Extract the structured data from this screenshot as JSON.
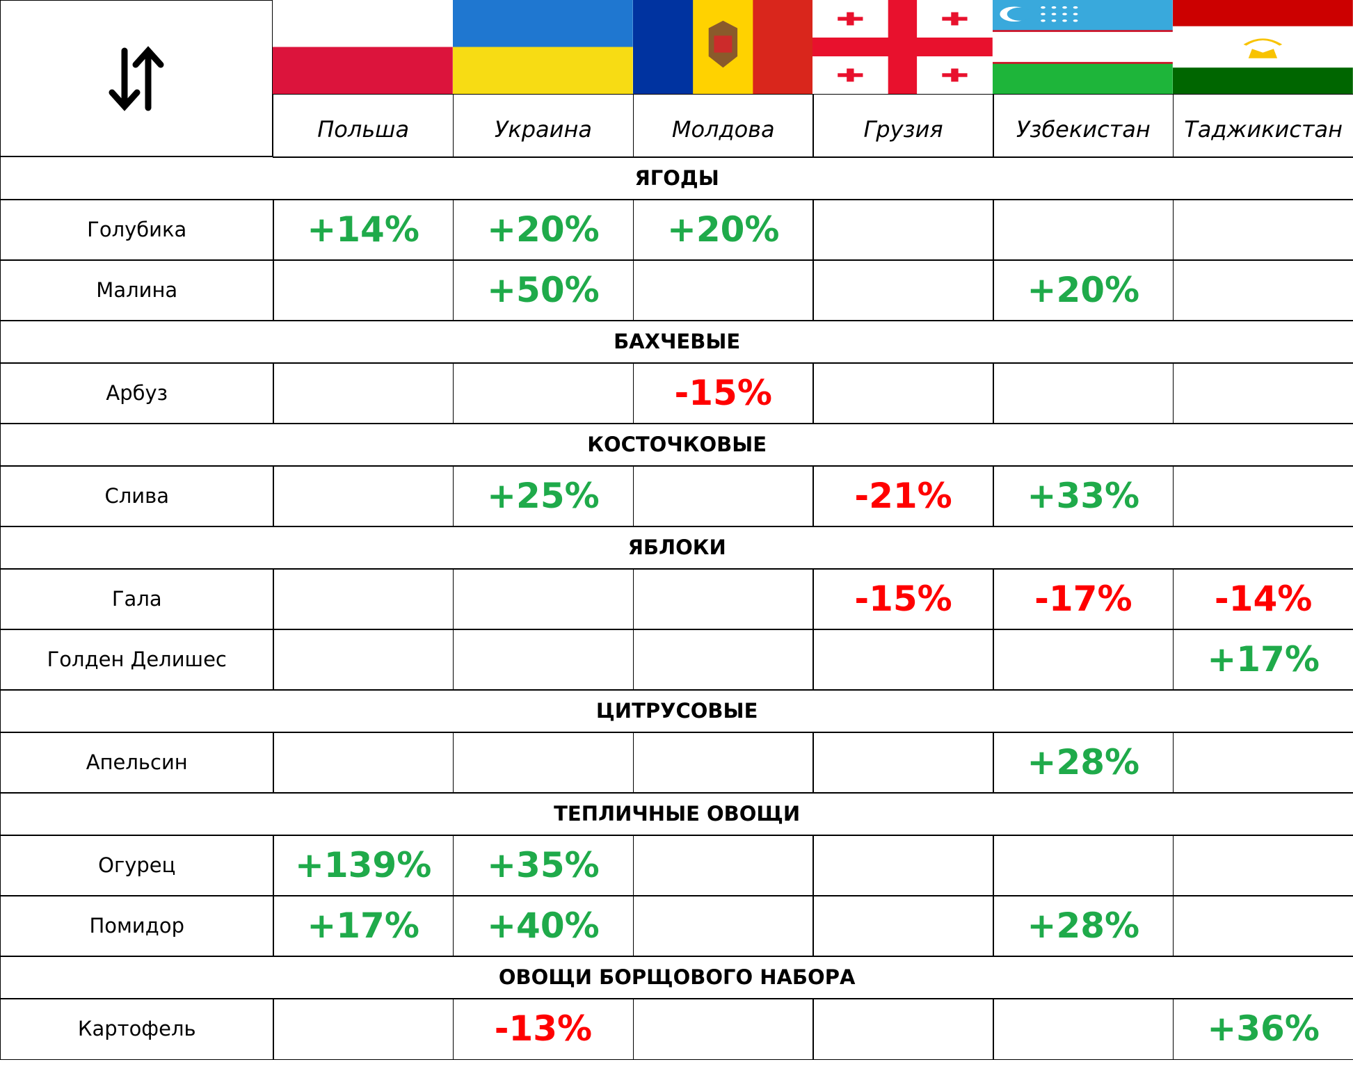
{
  "header": {
    "countries": [
      "Польша",
      "Украина",
      "Молдова",
      "Грузия",
      "Узбекистан",
      "Таджикистан"
    ]
  },
  "positive_color": "#1faa4a",
  "negative_color": "#ff0000",
  "sections": [
    {
      "title": "ЯГОДЫ",
      "rows": [
        {
          "label": "Голубика",
          "cells": [
            "+14%",
            "+20%",
            "+20%",
            null,
            null,
            null
          ]
        },
        {
          "label": "Малина",
          "cells": [
            null,
            "+50%",
            null,
            null,
            "+20%",
            null
          ]
        }
      ]
    },
    {
      "title": "БАХЧЕВЫЕ",
      "rows": [
        {
          "label": "Арбуз",
          "cells": [
            null,
            null,
            "-15%",
            null,
            null,
            null
          ]
        }
      ]
    },
    {
      "title": "КОСТОЧКОВЫЕ",
      "rows": [
        {
          "label": "Слива",
          "cells": [
            null,
            "+25%",
            null,
            "-21%",
            "+33%",
            null
          ]
        }
      ]
    },
    {
      "title": "ЯБЛОКИ",
      "rows": [
        {
          "label": "Гала",
          "cells": [
            null,
            null,
            null,
            "-15%",
            "-17%",
            "-14%"
          ]
        },
        {
          "label": "Голден Делишес",
          "cells": [
            null,
            null,
            null,
            null,
            null,
            "+17%"
          ]
        }
      ]
    },
    {
      "title": "ЦИТРУСОВЫЕ",
      "rows": [
        {
          "label": "Апельсин",
          "cells": [
            null,
            null,
            null,
            null,
            "+28%",
            null
          ]
        }
      ]
    },
    {
      "title": "ТЕПЛИЧНЫЕ ОВОЩИ",
      "rows": [
        {
          "label": "Огурец",
          "cells": [
            "+139%",
            "+35%",
            null,
            null,
            null,
            null
          ]
        },
        {
          "label": "Помидор",
          "cells": [
            "+17%",
            "+40%",
            null,
            null,
            "+28%",
            null
          ]
        }
      ]
    },
    {
      "title": "ОВОЩИ БОРЩОВОГО НАБОРА",
      "rows": [
        {
          "label": "Картофель",
          "cells": [
            null,
            "-13%",
            null,
            null,
            null,
            "+36%"
          ]
        }
      ]
    }
  ]
}
